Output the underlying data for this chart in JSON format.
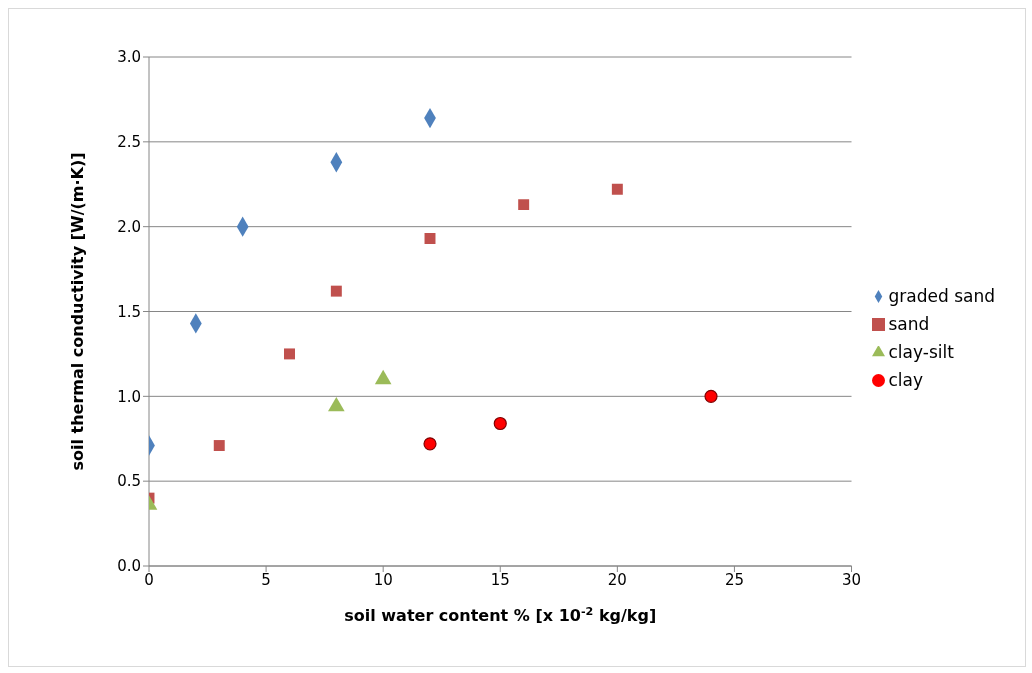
{
  "chart_data": {
    "type": "scatter",
    "xlabel": "soil water content % [x 10$^{-2}$ kg/kg]",
    "ylabel": "soil thermal conductivity [W/(m·K)]",
    "xlim": [
      0,
      30
    ],
    "xticks": [
      0,
      5,
      10,
      15,
      20,
      25,
      30
    ],
    "ylim": [
      0,
      3
    ],
    "yticks": [
      {
        "value": 0,
        "label": "0.0"
      },
      {
        "value": 0.5,
        "label": "0.5"
      },
      {
        "value": 1,
        "label": "1.0"
      },
      {
        "value": 1.5,
        "label": "1.5"
      },
      {
        "value": 2,
        "label": "2.0"
      },
      {
        "value": 2.5,
        "label": "2.5"
      },
      {
        "value": 3,
        "label": "3.0"
      }
    ],
    "grid": "y",
    "legend": "right",
    "series": [
      {
        "name": "graded sand",
        "color": "#4f81bd",
        "marker": "diamond",
        "x": [
          0,
          2,
          4,
          8,
          12
        ],
        "values": [
          0.71,
          1.43,
          2.0,
          2.38,
          2.64
        ]
      },
      {
        "name": "sand",
        "color": "#c0504d",
        "marker": "square",
        "x": [
          0,
          3,
          6,
          8,
          12,
          16,
          20
        ],
        "values": [
          0.4,
          0.71,
          1.25,
          1.62,
          1.93,
          2.13,
          2.22
        ]
      },
      {
        "name": "clay-silt",
        "color": "#9bbb59",
        "marker": "triangle",
        "x": [
          0,
          8,
          10
        ],
        "values": [
          0.36,
          0.94,
          1.1
        ]
      },
      {
        "name": "clay",
        "color": "#ff0000",
        "marker": "circle",
        "x": [
          12,
          15,
          24
        ],
        "values": [
          0.72,
          0.84,
          1.0
        ]
      }
    ]
  }
}
